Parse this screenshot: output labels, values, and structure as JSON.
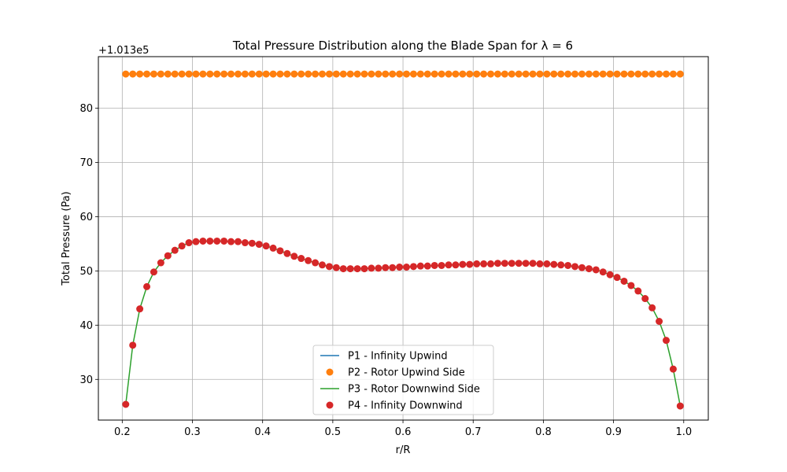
{
  "chart_data": {
    "type": "line",
    "title": "Total Pressure Distribution along the Blade Span for λ = 6",
    "xlabel": "r/R",
    "ylabel": "Total Pressure (Pa)",
    "offset_label": "+1.013e5",
    "xlim": [
      0.166,
      1.035
    ],
    "ylim": [
      22.5,
      89.5
    ],
    "xticks": [
      0.2,
      0.3,
      0.4,
      0.5,
      0.6,
      0.7,
      0.8,
      0.9,
      1.0
    ],
    "xtick_labels": [
      "0.2",
      "0.3",
      "0.4",
      "0.5",
      "0.6",
      "0.7",
      "0.8",
      "0.9",
      "1.0"
    ],
    "yticks": [
      30,
      40,
      50,
      60,
      70,
      80
    ],
    "ytick_labels": [
      "30",
      "40",
      "50",
      "60",
      "70",
      "80"
    ],
    "grid": true,
    "legend_position": "lower center",
    "x": [
      0.205,
      0.215,
      0.225,
      0.235,
      0.245,
      0.255,
      0.265,
      0.275,
      0.285,
      0.295,
      0.305,
      0.315,
      0.325,
      0.335,
      0.345,
      0.355,
      0.365,
      0.375,
      0.385,
      0.395,
      0.405,
      0.415,
      0.425,
      0.435,
      0.445,
      0.455,
      0.465,
      0.475,
      0.485,
      0.495,
      0.505,
      0.515,
      0.525,
      0.535,
      0.545,
      0.555,
      0.565,
      0.575,
      0.585,
      0.595,
      0.605,
      0.615,
      0.625,
      0.635,
      0.645,
      0.655,
      0.665,
      0.675,
      0.685,
      0.695,
      0.705,
      0.715,
      0.725,
      0.735,
      0.745,
      0.755,
      0.765,
      0.775,
      0.785,
      0.795,
      0.805,
      0.815,
      0.825,
      0.835,
      0.845,
      0.855,
      0.865,
      0.875,
      0.885,
      0.895,
      0.905,
      0.915,
      0.925,
      0.935,
      0.945,
      0.955,
      0.965,
      0.975,
      0.985,
      0.995
    ],
    "series": [
      {
        "name": "P1 - Infinity Upwind",
        "style": "line",
        "color": "#1f77b4",
        "values": [
          86.3,
          86.3,
          86.3,
          86.3,
          86.3,
          86.3,
          86.3,
          86.3,
          86.3,
          86.3,
          86.3,
          86.3,
          86.3,
          86.3,
          86.3,
          86.3,
          86.3,
          86.3,
          86.3,
          86.3,
          86.3,
          86.3,
          86.3,
          86.3,
          86.3,
          86.3,
          86.3,
          86.3,
          86.3,
          86.3,
          86.3,
          86.3,
          86.3,
          86.3,
          86.3,
          86.3,
          86.3,
          86.3,
          86.3,
          86.3,
          86.3,
          86.3,
          86.3,
          86.3,
          86.3,
          86.3,
          86.3,
          86.3,
          86.3,
          86.3,
          86.3,
          86.3,
          86.3,
          86.3,
          86.3,
          86.3,
          86.3,
          86.3,
          86.3,
          86.3,
          86.3,
          86.3,
          86.3,
          86.3,
          86.3,
          86.3,
          86.3,
          86.3,
          86.3,
          86.3,
          86.3,
          86.3,
          86.3,
          86.3,
          86.3,
          86.3,
          86.3,
          86.3,
          86.3,
          86.3
        ]
      },
      {
        "name": "P2 - Rotor Upwind Side",
        "style": "marker",
        "color": "#ff7f0e",
        "values": [
          86.3,
          86.3,
          86.3,
          86.3,
          86.3,
          86.3,
          86.3,
          86.3,
          86.3,
          86.3,
          86.3,
          86.3,
          86.3,
          86.3,
          86.3,
          86.3,
          86.3,
          86.3,
          86.3,
          86.3,
          86.3,
          86.3,
          86.3,
          86.3,
          86.3,
          86.3,
          86.3,
          86.3,
          86.3,
          86.3,
          86.3,
          86.3,
          86.3,
          86.3,
          86.3,
          86.3,
          86.3,
          86.3,
          86.3,
          86.3,
          86.3,
          86.3,
          86.3,
          86.3,
          86.3,
          86.3,
          86.3,
          86.3,
          86.3,
          86.3,
          86.3,
          86.3,
          86.3,
          86.3,
          86.3,
          86.3,
          86.3,
          86.3,
          86.3,
          86.3,
          86.3,
          86.3,
          86.3,
          86.3,
          86.3,
          86.3,
          86.3,
          86.3,
          86.3,
          86.3,
          86.3,
          86.3,
          86.3,
          86.3,
          86.3,
          86.3,
          86.3,
          86.3,
          86.3,
          86.3
        ]
      },
      {
        "name": "P3 - Rotor Downwind Side",
        "style": "line",
        "color": "#2ca02c",
        "values": [
          25.4,
          36.3,
          43.0,
          47.1,
          49.8,
          51.5,
          52.8,
          53.8,
          54.6,
          55.2,
          55.4,
          55.5,
          55.5,
          55.5,
          55.5,
          55.4,
          55.4,
          55.2,
          55.1,
          54.9,
          54.6,
          54.2,
          53.7,
          53.2,
          52.7,
          52.3,
          51.9,
          51.5,
          51.1,
          50.8,
          50.6,
          50.4,
          50.4,
          50.4,
          50.4,
          50.5,
          50.5,
          50.6,
          50.6,
          50.7,
          50.7,
          50.8,
          50.9,
          50.9,
          51.0,
          51.0,
          51.1,
          51.1,
          51.2,
          51.2,
          51.3,
          51.3,
          51.3,
          51.4,
          51.4,
          51.4,
          51.4,
          51.4,
          51.4,
          51.3,
          51.3,
          51.2,
          51.1,
          51.0,
          50.8,
          50.6,
          50.4,
          50.2,
          49.8,
          49.3,
          48.8,
          48.1,
          47.3,
          46.3,
          44.9,
          43.2,
          40.7,
          37.2,
          31.9,
          25.1
        ]
      },
      {
        "name": "P4 - Infinity Downwind",
        "style": "marker",
        "color": "#d62728",
        "values": [
          25.4,
          36.3,
          43.0,
          47.1,
          49.8,
          51.5,
          52.8,
          53.8,
          54.6,
          55.2,
          55.4,
          55.5,
          55.5,
          55.5,
          55.5,
          55.4,
          55.4,
          55.2,
          55.1,
          54.9,
          54.6,
          54.2,
          53.7,
          53.2,
          52.7,
          52.3,
          51.9,
          51.5,
          51.1,
          50.8,
          50.6,
          50.4,
          50.4,
          50.4,
          50.4,
          50.5,
          50.5,
          50.6,
          50.6,
          50.7,
          50.7,
          50.8,
          50.9,
          50.9,
          51.0,
          51.0,
          51.1,
          51.1,
          51.2,
          51.2,
          51.3,
          51.3,
          51.3,
          51.4,
          51.4,
          51.4,
          51.4,
          51.4,
          51.4,
          51.3,
          51.3,
          51.2,
          51.1,
          51.0,
          50.8,
          50.6,
          50.4,
          50.2,
          49.8,
          49.3,
          48.8,
          48.1,
          47.3,
          46.3,
          44.9,
          43.2,
          40.7,
          37.2,
          31.9,
          25.1
        ]
      }
    ]
  }
}
